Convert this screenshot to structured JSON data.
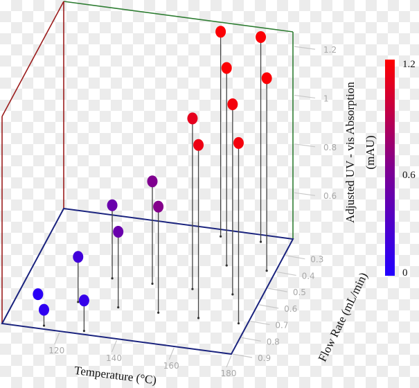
{
  "chart_data": {
    "type": "scatter3d",
    "x_axis": {
      "title": "Temperature (°C)",
      "range": [
        100,
        180
      ],
      "ticks": [
        120,
        140,
        160,
        180
      ],
      "tick_labels": [
        "120",
        "140",
        "160",
        "180"
      ]
    },
    "y_axis": {
      "title": "Flow Rate (mL/min)",
      "range": [
        0.2,
        0.9
      ],
      "ticks": [
        0.3,
        0.4,
        0.5,
        0.6,
        0.7,
        0.8,
        0.9
      ],
      "tick_labels": [
        "0.3",
        "0.4",
        "0.5",
        "0.6",
        "0.7",
        "0.8",
        "0.9"
      ]
    },
    "z_axis": {
      "title_line1": "Adjusted UV - vis Absorption",
      "title_line2": "(mAU)",
      "range": [
        0.41,
        1.26
      ],
      "ticks": [
        0.6,
        0.8,
        1.0,
        1.2
      ],
      "tick_labels": [
        "0.6",
        "0.8",
        "1",
        "1.2"
      ]
    },
    "colorbar": {
      "range": [
        0,
        1.2
      ],
      "tick_labels": [
        "1.2",
        "0.6",
        "0"
      ],
      "low_color": "#2200ff",
      "mid_color": "#800090",
      "high_color": "#ff0000"
    },
    "stems": true,
    "points": [
      {
        "temp": 107,
        "flow": 0.72,
        "abs": 0.42,
        "c": 0.05
      },
      {
        "temp": 114,
        "flow": 0.88,
        "abs": 0.475,
        "c": 0.08
      },
      {
        "temp": 121,
        "flow": 0.72,
        "abs": 0.595,
        "c": 0.2
      },
      {
        "temp": 128,
        "flow": 0.88,
        "abs": 0.535,
        "c": 0.12
      },
      {
        "temp": 128,
        "flow": 0.56,
        "abs": 0.71,
        "c": 0.45
      },
      {
        "temp": 135,
        "flow": 0.72,
        "abs": 0.72,
        "c": 0.45
      },
      {
        "temp": 142,
        "flow": 0.56,
        "abs": 0.83,
        "c": 0.6
      },
      {
        "temp": 149,
        "flow": 0.72,
        "abs": 0.845,
        "c": 0.62
      },
      {
        "temp": 156,
        "flow": 0.56,
        "abs": 1.11,
        "c": 1.08
      },
      {
        "temp": 163,
        "flow": 0.72,
        "abs": 1.12,
        "c": 1.12
      },
      {
        "temp": 156,
        "flow": 0.24,
        "abs": 1.25,
        "c": 1.18
      },
      {
        "temp": 163,
        "flow": 0.4,
        "abs": 1.22,
        "c": 1.18
      },
      {
        "temp": 170,
        "flow": 0.56,
        "abs": 1.19,
        "c": 1.15
      },
      {
        "temp": 177,
        "flow": 0.72,
        "abs": 1.15,
        "c": 1.15
      },
      {
        "temp": 170,
        "flow": 0.24,
        "abs": 1.25,
        "c": 1.18
      },
      {
        "temp": 177,
        "flow": 0.4,
        "abs": 1.2,
        "c": 1.18
      }
    ]
  }
}
